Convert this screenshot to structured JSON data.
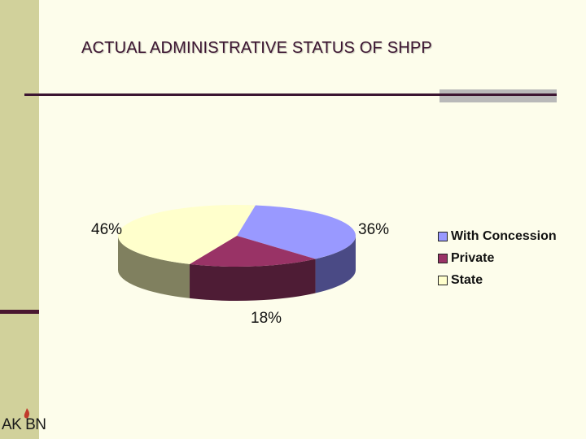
{
  "slide": {
    "title": "ACTUAL ADMINISTRATIVE STATUS OF SHPP",
    "logo_text": "AK BN"
  },
  "colors": {
    "background": "#fdfdeb",
    "side_band": "#d1d19b",
    "accent": "#3c1531"
  },
  "chart_data": {
    "type": "pie",
    "style": "3d",
    "slices": [
      {
        "label": "With Concession",
        "value": 36,
        "display": "36%",
        "color": "#9999ff",
        "side_color": "#4a4a85"
      },
      {
        "label": "Private",
        "value": 18,
        "display": "18%",
        "color": "#993366",
        "side_color": "#4e1c35"
      },
      {
        "label": "State",
        "value": 46,
        "display": "46%",
        "color": "#ffffcc",
        "side_color": "#80805f"
      }
    ],
    "legend": {
      "position": "right",
      "entries": [
        "With Concession",
        "Private",
        "State"
      ]
    }
  }
}
